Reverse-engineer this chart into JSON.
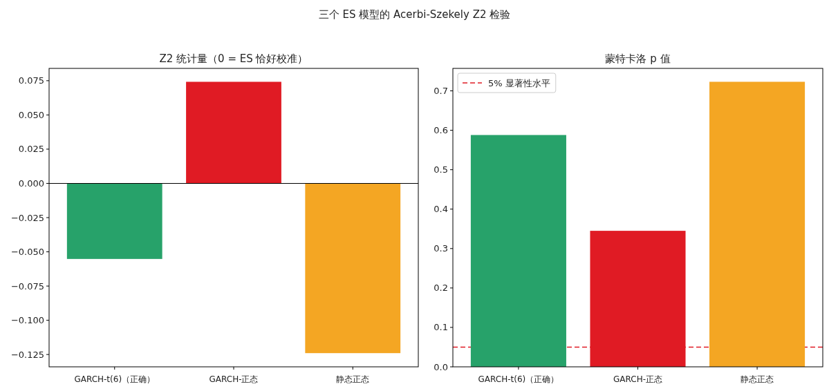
{
  "chart_data": [
    {
      "type": "bar",
      "title": "Z2 统计量（0 = ES 恰好校准）",
      "annotations": [
        "三个 ES 模型的 Acerbi-Szekely Z2 检验"
      ],
      "categories": [
        "GARCH-t(6)（正确）",
        "GARCH-正态",
        "静态正态"
      ],
      "values": [
        -0.0552,
        0.0742,
        -0.124
      ],
      "colors": [
        "#27a26a",
        "#e01b24",
        "#f4a623"
      ],
      "ylim": [
        -0.134,
        0.084
      ],
      "yticks": [
        {
          "value": -0.125,
          "label": "−0.125"
        },
        {
          "value": -0.1,
          "label": "−0.100"
        },
        {
          "value": -0.075,
          "label": "−0.075"
        },
        {
          "value": -0.05,
          "label": "−0.050"
        },
        {
          "value": -0.025,
          "label": "−0.025"
        },
        {
          "value": 0,
          "label": "0.000"
        },
        {
          "value": 0.025,
          "label": "0.025"
        },
        {
          "value": 0.05,
          "label": "0.050"
        },
        {
          "value": 0.075,
          "label": "0.075"
        }
      ],
      "ref_lines": [
        {
          "axis": "y",
          "value": 0,
          "color": "#000000",
          "line_style": "solid"
        }
      ]
    },
    {
      "type": "bar",
      "title": "蒙特卡洛 p 值",
      "categories": [
        "GARCH-t(6)（正确）",
        "GARCH-正态",
        "静态正态"
      ],
      "values": [
        0.588,
        0.345,
        0.723
      ],
      "colors": [
        "#27a26a",
        "#e01b24",
        "#f4a623"
      ],
      "ylim": [
        0,
        0.757
      ],
      "yticks": [
        {
          "value": 0,
          "label": "0.0"
        },
        {
          "value": 0.1,
          "label": "0.1"
        },
        {
          "value": 0.2,
          "label": "0.2"
        },
        {
          "value": 0.3,
          "label": "0.3"
        },
        {
          "value": 0.4,
          "label": "0.4"
        },
        {
          "value": 0.5,
          "label": "0.5"
        },
        {
          "value": 0.6,
          "label": "0.6"
        },
        {
          "value": 0.7,
          "label": "0.7"
        }
      ],
      "ref_lines": [
        {
          "axis": "y",
          "value": 0.05,
          "label": "5% 显著性水平",
          "color": "#e01b24",
          "line_style": "dashed"
        }
      ],
      "legend": "top left"
    }
  ]
}
